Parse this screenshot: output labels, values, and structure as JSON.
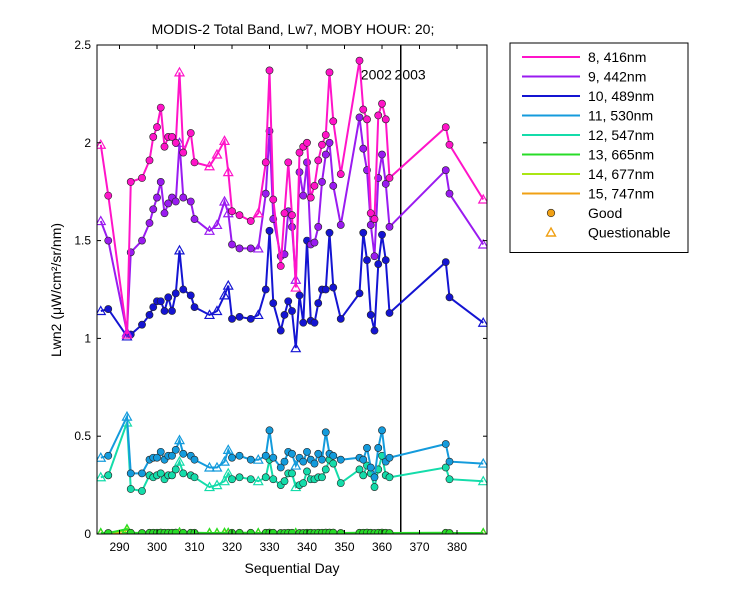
{
  "chart_data": {
    "type": "line",
    "title": "MODIS-2 Total Band, Lw7, MOBY HOUR: 20;",
    "xlabel": "Sequential Day",
    "ylabel": "Lwn2 (μW/cm²/sr/nm)",
    "xlim": [
      284,
      388
    ],
    "ylim": [
      0,
      2.5
    ],
    "xticks": [
      290,
      300,
      310,
      320,
      330,
      340,
      350,
      360,
      370,
      380
    ],
    "yticks": [
      0,
      0.5,
      1,
      1.5,
      2,
      2.5
    ],
    "ytick_labels": [
      "0",
      "0.5",
      "1",
      "1.5",
      "2",
      "2.5"
    ],
    "year_divider_x": 365,
    "annotations": [
      {
        "text": "2002",
        "x": 358.5,
        "y": 2.35
      },
      {
        "text": "2003",
        "x": 367.5,
        "y": 2.35
      }
    ],
    "x": [
      285,
      287,
      292,
      293,
      296,
      298,
      299,
      300,
      301,
      302,
      303,
      304,
      305,
      306,
      307,
      309,
      310,
      314,
      316,
      318,
      319,
      320,
      322,
      325,
      327,
      329,
      330,
      331,
      333,
      334,
      335,
      336,
      337,
      338,
      339,
      340,
      341,
      342,
      343,
      344,
      345,
      346,
      347,
      349,
      354,
      355,
      356,
      357,
      358,
      359,
      360,
      361,
      362,
      377,
      378,
      387
    ],
    "series": [
      {
        "name": "8, 416nm",
        "color": "#ff14c8",
        "values": [
          1.99,
          1.73,
          1.02,
          1.8,
          1.82,
          1.91,
          2.03,
          2.08,
          2.18,
          1.98,
          2.03,
          2.03,
          2.0,
          2.36,
          1.95,
          2.05,
          1.9,
          1.88,
          1.94,
          2.01,
          1.85,
          1.65,
          1.63,
          1.6,
          1.64,
          1.9,
          2.37,
          1.71,
          1.37,
          1.64,
          1.9,
          1.63,
          1.26,
          1.95,
          1.98,
          2.0,
          1.72,
          1.78,
          1.91,
          1.99,
          2.04,
          2.36,
          2.11,
          1.84,
          2.42,
          2.17,
          2.12,
          1.64,
          1.61,
          2.14,
          2.2,
          2.12,
          1.82,
          2.08,
          1.99,
          1.71
        ]
      },
      {
        "name": "9, 442nm",
        "color": "#9a1bf0",
        "values": [
          1.6,
          1.5,
          1.03,
          1.44,
          1.5,
          1.59,
          1.66,
          1.72,
          1.8,
          1.64,
          1.69,
          1.72,
          1.7,
          2.0,
          1.72,
          1.7,
          1.61,
          1.55,
          1.58,
          1.7,
          1.64,
          1.48,
          1.46,
          1.46,
          1.46,
          1.74,
          2.06,
          1.61,
          1.42,
          1.43,
          1.65,
          1.57,
          1.3,
          1.85,
          1.73,
          1.9,
          1.48,
          1.49,
          1.57,
          1.8,
          1.94,
          2.0,
          1.78,
          1.58,
          2.13,
          1.97,
          1.86,
          1.58,
          1.42,
          1.82,
          1.94,
          1.79,
          1.57,
          1.86,
          1.74,
          1.48
        ]
      },
      {
        "name": "10, 489nm",
        "color": "#1414d2",
        "values": [
          1.14,
          1.15,
          1.01,
          1.02,
          1.07,
          1.12,
          1.16,
          1.19,
          1.19,
          1.14,
          1.21,
          1.14,
          1.23,
          1.45,
          1.25,
          1.22,
          1.16,
          1.12,
          1.14,
          1.22,
          1.27,
          1.1,
          1.11,
          1.1,
          1.12,
          1.25,
          1.55,
          1.18,
          1.04,
          1.12,
          1.19,
          1.14,
          0.95,
          1.22,
          1.08,
          1.5,
          1.09,
          1.08,
          1.18,
          1.25,
          1.25,
          1.54,
          1.26,
          1.1,
          1.23,
          1.54,
          1.4,
          1.12,
          1.04,
          1.38,
          1.53,
          1.4,
          1.13,
          1.39,
          1.21,
          1.08
        ]
      },
      {
        "name": "11, 530nm",
        "color": "#149bdc",
        "values": [
          0.39,
          0.4,
          0.6,
          0.31,
          0.31,
          0.38,
          0.39,
          0.39,
          0.42,
          0.38,
          0.4,
          0.4,
          0.43,
          0.48,
          0.41,
          0.4,
          0.38,
          0.34,
          0.34,
          0.37,
          0.43,
          0.39,
          0.4,
          0.38,
          0.38,
          0.4,
          0.53,
          0.39,
          0.34,
          0.37,
          0.42,
          0.41,
          0.35,
          0.39,
          0.37,
          0.42,
          0.38,
          0.36,
          0.41,
          0.38,
          0.52,
          0.41,
          0.4,
          0.38,
          0.39,
          0.38,
          0.44,
          0.34,
          0.29,
          0.44,
          0.53,
          0.37,
          0.39,
          0.46,
          0.37,
          0.36
        ]
      },
      {
        "name": "12, 547nm",
        "color": "#14dcaa",
        "values": [
          0.29,
          0.3,
          0.57,
          0.23,
          0.22,
          0.3,
          0.29,
          0.3,
          0.31,
          0.28,
          0.3,
          0.3,
          0.33,
          0.37,
          0.31,
          0.3,
          0.29,
          0.24,
          0.25,
          0.27,
          0.31,
          0.28,
          0.29,
          0.28,
          0.27,
          0.29,
          0.38,
          0.28,
          0.25,
          0.27,
          0.31,
          0.31,
          0.24,
          0.25,
          0.26,
          0.32,
          0.28,
          0.28,
          0.29,
          0.29,
          0.33,
          0.38,
          0.36,
          0.26,
          0.33,
          0.3,
          0.35,
          0.31,
          0.24,
          0.33,
          0.4,
          0.3,
          0.29,
          0.34,
          0.28,
          0.27
        ]
      },
      {
        "name": "13, 665nm",
        "color": "#28dc28",
        "values": [
          0.005,
          0.005,
          0.025,
          0.006,
          0.005,
          0.006,
          0.006,
          0.006,
          0.007,
          0.006,
          0.006,
          0.006,
          0.007,
          0.008,
          0.006,
          0.006,
          0.006,
          0.005,
          0.005,
          0.006,
          0.006,
          0.006,
          0.006,
          0.006,
          0.005,
          0.006,
          0.007,
          0.006,
          0.005,
          0.005,
          0.006,
          0.006,
          0.005,
          0.005,
          0.005,
          0.006,
          0.006,
          0.005,
          0.006,
          0.006,
          0.007,
          0.007,
          0.007,
          0.005,
          0.006,
          0.006,
          0.007,
          0.006,
          0.005,
          0.006,
          0.007,
          0.006,
          0.005,
          0.006,
          0.005,
          0.005
        ]
      },
      {
        "name": "14, 677nm",
        "color": "#aae614",
        "values": [
          0.004,
          0.004,
          0.02,
          0.005,
          0.004,
          0.005,
          0.005,
          0.005,
          0.006,
          0.005,
          0.005,
          0.005,
          0.006,
          0.007,
          0.005,
          0.005,
          0.005,
          0.004,
          0.004,
          0.005,
          0.005,
          0.005,
          0.005,
          0.005,
          0.004,
          0.005,
          0.006,
          0.005,
          0.004,
          0.004,
          0.005,
          0.005,
          0.004,
          0.004,
          0.004,
          0.005,
          0.005,
          0.004,
          0.005,
          0.005,
          0.006,
          0.006,
          0.006,
          0.004,
          0.005,
          0.005,
          0.006,
          0.005,
          0.004,
          0.005,
          0.006,
          0.005,
          0.004,
          0.005,
          0.004,
          0.004
        ]
      },
      {
        "name": "15, 747nm",
        "color": "#f0a014",
        "values": [
          0.002,
          0.002,
          0.003,
          0.002,
          0.002,
          0.002,
          0.002,
          0.002,
          0.002,
          0.002,
          0.002,
          0.002,
          0.002,
          0.002,
          0.002,
          0.002,
          0.002,
          0.002,
          0.002,
          0.002,
          0.002,
          0.002,
          0.002,
          0.002,
          0.002,
          0.002,
          0.002,
          0.002,
          0.002,
          0.002,
          0.002,
          0.002,
          0.002,
          0.002,
          0.002,
          0.002,
          0.002,
          0.002,
          0.002,
          0.002,
          0.002,
          0.002,
          0.002,
          0.002,
          0.002,
          0.002,
          0.002,
          0.002,
          0.002,
          0.002,
          0.002,
          0.002,
          0.002,
          0.002,
          0.002,
          0.002
        ]
      }
    ],
    "quality": [
      "Q",
      "G",
      "Q",
      "G",
      "G",
      "G",
      "G",
      "G",
      "G",
      "G",
      "G",
      "G",
      "G",
      "Q",
      "G",
      "G",
      "G",
      "Q",
      "Q",
      "Q",
      "Q",
      "G",
      "G",
      "G",
      "Q",
      "G",
      "G",
      "G",
      "G",
      "G",
      "G",
      "G",
      "Q",
      "G",
      "G",
      "G",
      "G",
      "G",
      "G",
      "G",
      "G",
      "G",
      "G",
      "G",
      "G",
      "G",
      "G",
      "G",
      "G",
      "G",
      "G",
      "G",
      "G",
      "G",
      "G",
      "Q"
    ],
    "legend": {
      "placement": "outside-right",
      "entries": [
        "8, 416nm",
        "9, 442nm",
        "10, 489nm",
        "11, 530nm",
        "12, 547nm",
        "13, 665nm",
        "14, 677nm",
        "15, 747nm"
      ],
      "marker_entries": [
        {
          "label": "Good",
          "marker": "circle",
          "color": "#f0a014"
        },
        {
          "label": "Questionable",
          "marker": "triangle",
          "color": "#f0a014"
        }
      ]
    },
    "grid": false
  }
}
